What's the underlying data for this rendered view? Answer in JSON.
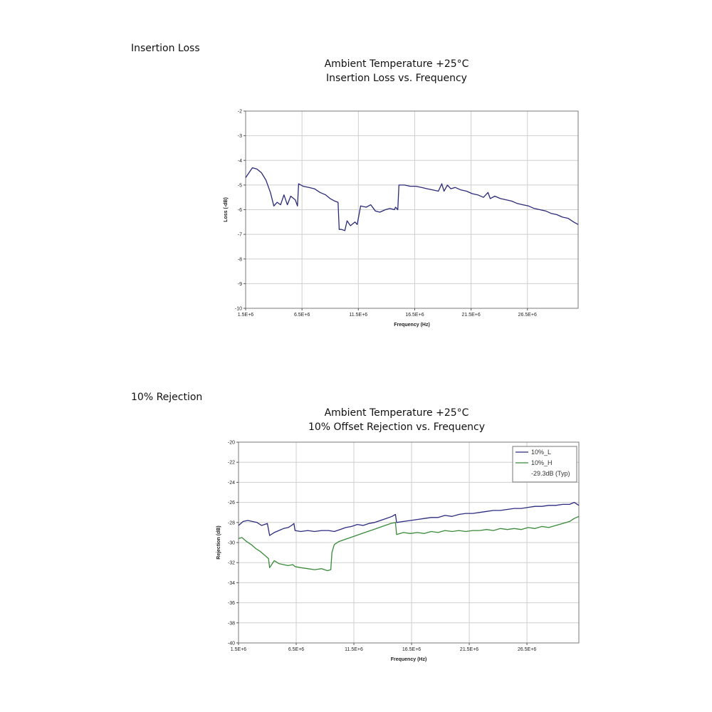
{
  "sections": [
    {
      "label": "Insertion Loss",
      "title_line1": "Ambient Temperature +25°C",
      "title_line2": "Insertion Loss vs. Frequency"
    },
    {
      "label": "10% Rejection",
      "title_line1": "Ambient Temperature +25°C",
      "title_line2": "10% Offset Rejection vs. Frequency"
    }
  ],
  "chart_data": [
    {
      "type": "line",
      "title": "Ambient Temperature +25°C Insertion Loss vs. Frequency",
      "xlabel": "Frequency (Hz)",
      "ylabel": "Loss (-dB)",
      "xlim": [
        1500000,
        31000000
      ],
      "ylim": [
        -10,
        -2
      ],
      "x_ticks": [
        1500000,
        6500000,
        11500000,
        16500000,
        21500000,
        26500000
      ],
      "x_tick_labels": [
        "1.5E+6",
        "6.5E+6",
        "11.5E+6",
        "16.5E+6",
        "21.5E+6",
        "26.5E+6"
      ],
      "y_ticks": [
        -2,
        -3,
        -4,
        -5,
        -6,
        -7,
        -8,
        -9,
        -10
      ],
      "grid": true,
      "series": [
        {
          "color": "#2a2a78",
          "points": [
            [
              1500000,
              -4.7
            ],
            [
              1800000,
              -4.5
            ],
            [
              2100000,
              -4.3
            ],
            [
              2500000,
              -4.35
            ],
            [
              2900000,
              -4.5
            ],
            [
              3300000,
              -4.8
            ],
            [
              3700000,
              -5.3
            ],
            [
              4000000,
              -5.85
            ],
            [
              4300000,
              -5.7
            ],
            [
              4600000,
              -5.8
            ],
            [
              4900000,
              -5.4
            ],
            [
              5200000,
              -5.8
            ],
            [
              5500000,
              -5.45
            ],
            [
              5900000,
              -5.6
            ],
            [
              6100000,
              -5.85
            ],
            [
              6200000,
              -4.95
            ],
            [
              6600000,
              -5.05
            ],
            [
              7100000,
              -5.1
            ],
            [
              7600000,
              -5.15
            ],
            [
              8100000,
              -5.3
            ],
            [
              8600000,
              -5.4
            ],
            [
              9000000,
              -5.55
            ],
            [
              9400000,
              -5.65
            ],
            [
              9700000,
              -5.7
            ],
            [
              9800000,
              -6.8
            ],
            [
              10000000,
              -6.8
            ],
            [
              10300000,
              -6.85
            ],
            [
              10500000,
              -6.45
            ],
            [
              10800000,
              -6.65
            ],
            [
              11200000,
              -6.5
            ],
            [
              11400000,
              -6.6
            ],
            [
              11700000,
              -5.85
            ],
            [
              12200000,
              -5.9
            ],
            [
              12600000,
              -5.8
            ],
            [
              13000000,
              -6.05
            ],
            [
              13400000,
              -6.1
            ],
            [
              13900000,
              -6.0
            ],
            [
              14300000,
              -5.95
            ],
            [
              14700000,
              -6.0
            ],
            [
              14800000,
              -5.9
            ],
            [
              15000000,
              -6.0
            ],
            [
              15100000,
              -5.0
            ],
            [
              15600000,
              -5.0
            ],
            [
              16100000,
              -5.05
            ],
            [
              16600000,
              -5.05
            ],
            [
              17100000,
              -5.1
            ],
            [
              17600000,
              -5.15
            ],
            [
              18100000,
              -5.2
            ],
            [
              18600000,
              -5.25
            ],
            [
              18900000,
              -4.95
            ],
            [
              19100000,
              -5.25
            ],
            [
              19400000,
              -5.0
            ],
            [
              19700000,
              -5.15
            ],
            [
              20100000,
              -5.1
            ],
            [
              20600000,
              -5.2
            ],
            [
              21100000,
              -5.25
            ],
            [
              21600000,
              -5.35
            ],
            [
              22100000,
              -5.4
            ],
            [
              22600000,
              -5.5
            ],
            [
              23000000,
              -5.3
            ],
            [
              23200000,
              -5.55
            ],
            [
              23600000,
              -5.45
            ],
            [
              24100000,
              -5.55
            ],
            [
              24600000,
              -5.6
            ],
            [
              25100000,
              -5.65
            ],
            [
              25600000,
              -5.75
            ],
            [
              26100000,
              -5.8
            ],
            [
              26600000,
              -5.85
            ],
            [
              27100000,
              -5.95
            ],
            [
              27600000,
              -6.0
            ],
            [
              28100000,
              -6.05
            ],
            [
              28600000,
              -6.15
            ],
            [
              29100000,
              -6.2
            ],
            [
              29600000,
              -6.3
            ],
            [
              30100000,
              -6.35
            ],
            [
              30600000,
              -6.5
            ],
            [
              31000000,
              -6.6
            ]
          ]
        }
      ]
    },
    {
      "type": "line",
      "title": "Ambient Temperature +25°C 10% Offset Rejection vs. Frequency",
      "xlabel": "Frequency (Hz)",
      "ylabel": "Rejection (dB)",
      "xlim": [
        1500000,
        31000000
      ],
      "ylim": [
        -40,
        -20
      ],
      "x_ticks": [
        1500000,
        6500000,
        11500000,
        16500000,
        21500000,
        26500000
      ],
      "x_tick_labels": [
        "1.5E+6",
        "6.5E+6",
        "11.5E+6",
        "16.5E+6",
        "21.5E+6",
        "26.5E+6"
      ],
      "y_ticks": [
        -20,
        -22,
        -24,
        -26,
        -28,
        -30,
        -32,
        -34,
        -36,
        -38,
        -40
      ],
      "grid": true,
      "legend_position": "top-right",
      "series": [
        {
          "name": "10%_L",
          "color": "#2b2b80",
          "points": [
            [
              1500000,
              -28.3
            ],
            [
              1900000,
              -27.9
            ],
            [
              2300000,
              -27.8
            ],
            [
              2700000,
              -27.9
            ],
            [
              3100000,
              -28.0
            ],
            [
              3500000,
              -28.3
            ],
            [
              4000000,
              -28.1
            ],
            [
              4200000,
              -29.3
            ],
            [
              4600000,
              -29.0
            ],
            [
              5000000,
              -28.8
            ],
            [
              5400000,
              -28.6
            ],
            [
              5800000,
              -28.5
            ],
            [
              6100000,
              -28.3
            ],
            [
              6300000,
              -28.1
            ],
            [
              6400000,
              -28.8
            ],
            [
              6900000,
              -28.9
            ],
            [
              7500000,
              -28.8
            ],
            [
              8100000,
              -28.9
            ],
            [
              8700000,
              -28.8
            ],
            [
              9300000,
              -28.8
            ],
            [
              9800000,
              -28.9
            ],
            [
              10300000,
              -28.7
            ],
            [
              10800000,
              -28.5
            ],
            [
              11300000,
              -28.4
            ],
            [
              11800000,
              -28.2
            ],
            [
              12300000,
              -28.3
            ],
            [
              12800000,
              -28.1
            ],
            [
              13300000,
              -28.0
            ],
            [
              13800000,
              -27.8
            ],
            [
              14300000,
              -27.6
            ],
            [
              14800000,
              -27.4
            ],
            [
              15100000,
              -27.2
            ],
            [
              15200000,
              -28.0
            ],
            [
              15800000,
              -27.9
            ],
            [
              16400000,
              -27.8
            ],
            [
              17000000,
              -27.7
            ],
            [
              17600000,
              -27.6
            ],
            [
              18200000,
              -27.5
            ],
            [
              18800000,
              -27.5
            ],
            [
              19400000,
              -27.3
            ],
            [
              20000000,
              -27.4
            ],
            [
              20600000,
              -27.2
            ],
            [
              21200000,
              -27.1
            ],
            [
              21800000,
              -27.1
            ],
            [
              22400000,
              -27.0
            ],
            [
              23000000,
              -26.9
            ],
            [
              23600000,
              -26.8
            ],
            [
              24200000,
              -26.8
            ],
            [
              24800000,
              -26.7
            ],
            [
              25400000,
              -26.6
            ],
            [
              26000000,
              -26.6
            ],
            [
              26600000,
              -26.5
            ],
            [
              27200000,
              -26.4
            ],
            [
              27800000,
              -26.4
            ],
            [
              28400000,
              -26.3
            ],
            [
              29000000,
              -26.3
            ],
            [
              29600000,
              -26.2
            ],
            [
              30200000,
              -26.2
            ],
            [
              30600000,
              -26.0
            ],
            [
              31000000,
              -26.3
            ]
          ]
        },
        {
          "name": "10%_H",
          "color": "#3a8a3a",
          "points": [
            [
              1500000,
              -29.6
            ],
            [
              1800000,
              -29.5
            ],
            [
              2200000,
              -29.9
            ],
            [
              2600000,
              -30.2
            ],
            [
              3000000,
              -30.6
            ],
            [
              3400000,
              -30.9
            ],
            [
              3800000,
              -31.3
            ],
            [
              4100000,
              -31.6
            ],
            [
              4200000,
              -32.5
            ],
            [
              4600000,
              -31.8
            ],
            [
              5000000,
              -32.1
            ],
            [
              5400000,
              -32.2
            ],
            [
              5800000,
              -32.3
            ],
            [
              6200000,
              -32.2
            ],
            [
              6400000,
              -32.4
            ],
            [
              6900000,
              -32.5
            ],
            [
              7500000,
              -32.6
            ],
            [
              8100000,
              -32.7
            ],
            [
              8700000,
              -32.6
            ],
            [
              9200000,
              -32.8
            ],
            [
              9500000,
              -32.7
            ],
            [
              9600000,
              -31.0
            ],
            [
              9800000,
              -30.2
            ],
            [
              10200000,
              -29.9
            ],
            [
              10700000,
              -29.7
            ],
            [
              11200000,
              -29.5
            ],
            [
              11700000,
              -29.3
            ],
            [
              12200000,
              -29.1
            ],
            [
              12700000,
              -28.9
            ],
            [
              13200000,
              -28.7
            ],
            [
              13700000,
              -28.5
            ],
            [
              14200000,
              -28.3
            ],
            [
              14700000,
              -28.1
            ],
            [
              15100000,
              -28.0
            ],
            [
              15200000,
              -29.2
            ],
            [
              15800000,
              -29.0
            ],
            [
              16400000,
              -29.1
            ],
            [
              17000000,
              -29.0
            ],
            [
              17600000,
              -29.1
            ],
            [
              18200000,
              -28.9
            ],
            [
              18800000,
              -29.0
            ],
            [
              19400000,
              -28.8
            ],
            [
              20000000,
              -28.9
            ],
            [
              20600000,
              -28.8
            ],
            [
              21200000,
              -28.9
            ],
            [
              21800000,
              -28.8
            ],
            [
              22400000,
              -28.8
            ],
            [
              23000000,
              -28.7
            ],
            [
              23600000,
              -28.8
            ],
            [
              24200000,
              -28.6
            ],
            [
              24800000,
              -28.7
            ],
            [
              25400000,
              -28.6
            ],
            [
              26000000,
              -28.7
            ],
            [
              26600000,
              -28.5
            ],
            [
              27200000,
              -28.6
            ],
            [
              27800000,
              -28.4
            ],
            [
              28400000,
              -28.5
            ],
            [
              29000000,
              -28.3
            ],
            [
              29600000,
              -28.1
            ],
            [
              30200000,
              -27.9
            ],
            [
              30600000,
              -27.6
            ],
            [
              31000000,
              -27.4
            ]
          ]
        }
      ],
      "legend": [
        "10%_L",
        "10%_H",
        "-29.3dB (Typ)"
      ]
    }
  ]
}
